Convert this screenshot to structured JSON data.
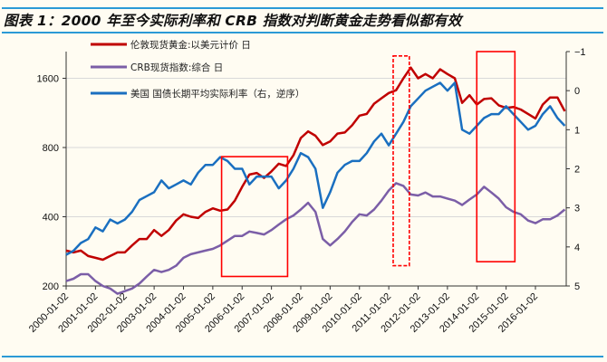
{
  "title": "图表 1：2000 年至今实际利率和 CRB 指数对判断黄金走势看似都有效",
  "chart_data": {
    "type": "line",
    "title": "图表 1：2000 年至今实际利率和 CRB 指数对判断黄金走势看似都有效",
    "x_range": [
      2000.0,
      2017.05
    ],
    "x_tick_labels": [
      "2000-01-02",
      "2001-01-02",
      "2002-01-02",
      "2003-01-02",
      "2004-01-02",
      "2005-01-02",
      "2006-01-02",
      "2007-01-02",
      "2008-01-02",
      "2009-01-02",
      "2010-01-02",
      "2011-01-02",
      "2012-01-02",
      "2013-01-02",
      "2014-01-02",
      "2015-01-02",
      "2016-01-02"
    ],
    "left_axis": {
      "scale": "log",
      "range": [
        200,
        2090
      ],
      "ticks": [
        200,
        400,
        800,
        1600
      ]
    },
    "right_axis": {
      "scale": "linear",
      "inverted": true,
      "range": [
        -1,
        5
      ],
      "ticks": [
        -1,
        0,
        1,
        2,
        3,
        4,
        5
      ]
    },
    "grid": "horizontal",
    "legend_position": "top-left",
    "x_quarterly": "2000.00 to 2017.00, step 0.25",
    "series": [
      {
        "name": "伦敦现货黄金:以美元计价 日",
        "axis": "left",
        "color": "#c00000",
        "values": [
          285,
          280,
          285,
          270,
          265,
          260,
          270,
          280,
          280,
          300,
          320,
          320,
          350,
          330,
          350,
          385,
          410,
          400,
          395,
          420,
          435,
          425,
          430,
          470,
          540,
          610,
          620,
          590,
          630,
          680,
          665,
          740,
          880,
          940,
          900,
          820,
          850,
          920,
          930,
          1000,
          1100,
          1120,
          1240,
          1310,
          1380,
          1420,
          1600,
          1780,
          1600,
          1670,
          1600,
          1750,
          1670,
          1600,
          1250,
          1350,
          1230,
          1300,
          1310,
          1220,
          1190,
          1200,
          1170,
          1120,
          1070,
          1230,
          1320,
          1320,
          1150
        ]
      },
      {
        "name": "CRB现货指数:综合 日",
        "axis": "left",
        "color": "#7b5ea7",
        "values": [
          210,
          215,
          225,
          225,
          210,
          200,
          195,
          185,
          190,
          195,
          205,
          220,
          235,
          230,
          235,
          245,
          265,
          275,
          280,
          285,
          290,
          300,
          315,
          330,
          330,
          345,
          340,
          335,
          350,
          370,
          390,
          405,
          430,
          460,
          420,
          320,
          300,
          320,
          345,
          380,
          410,
          405,
          430,
          470,
          520,
          560,
          545,
          500,
          495,
          510,
          490,
          490,
          480,
          470,
          450,
          475,
          500,
          540,
          510,
          480,
          440,
          420,
          410,
          385,
          375,
          390,
          390,
          405,
          430
        ]
      },
      {
        "name": "美国 国债长期平均实际利率（右，逆序）",
        "axis": "right",
        "color": "#1a6fc0",
        "values": [
          4.2,
          4.1,
          3.9,
          3.8,
          3.5,
          3.6,
          3.3,
          3.4,
          3.3,
          3.1,
          2.8,
          2.7,
          2.6,
          2.3,
          2.5,
          2.4,
          2.3,
          2.4,
          2.1,
          1.9,
          1.9,
          1.7,
          1.8,
          2.0,
          2.0,
          2.4,
          2.2,
          2.2,
          2.2,
          2.5,
          2.3,
          2.0,
          1.6,
          1.7,
          2.0,
          3.0,
          2.6,
          2.1,
          1.9,
          1.8,
          1.8,
          1.6,
          1.3,
          1.1,
          1.4,
          1.1,
          0.8,
          0.4,
          0.2,
          0.0,
          -0.1,
          -0.2,
          0.0,
          -0.2,
          1.0,
          1.1,
          0.9,
          0.7,
          0.6,
          0.6,
          0.4,
          0.6,
          0.8,
          1.0,
          0.9,
          0.6,
          0.4,
          0.7,
          0.9
        ]
      }
    ],
    "annotations": [
      {
        "type": "box",
        "style": "solid",
        "color": "#ff0000",
        "x": [
          2005.3,
          2007.55
        ],
        "left_value": [
          220,
          730
        ]
      },
      {
        "type": "box",
        "style": "dashed",
        "color": "#ff0000",
        "x": [
          2011.15,
          2011.7
        ],
        "left_value": [
          245,
          2000
        ]
      },
      {
        "type": "box",
        "style": "solid",
        "color": "#ff0000",
        "x": [
          2014.0,
          2015.3
        ],
        "left_value": [
          255,
          2090
        ]
      }
    ]
  }
}
